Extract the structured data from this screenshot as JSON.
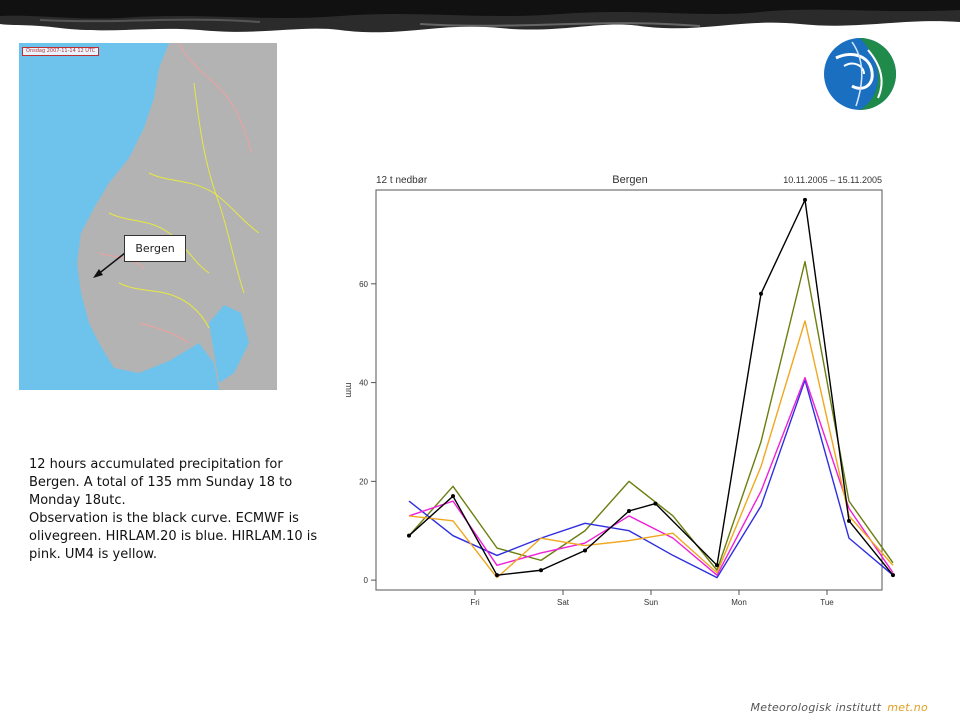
{
  "map": {
    "stamp": "Onsdag 2007-11-14 12 UTC",
    "callout": "Bergen"
  },
  "caption": {
    "lines": [
      "12 hours accumulated precipitation for Bergen. A total of 135 mm Sunday 18 to Monday 18utc.",
      "Observation is the black curve. ECMWF is olivegreen. HIRLAM.20 is blue. HIRLAM.10 is pink. UM4 is yellow."
    ]
  },
  "footer": {
    "institute": "Meteorologisk institutt",
    "brand": "met.no"
  },
  "chart_data": {
    "type": "line",
    "title": "Bergen",
    "subtitle_left": "12 t nedbør",
    "subtitle_right": "10.11.2005 – 15.11.2005",
    "ylabel": "mm",
    "xlabel": "",
    "ylim": [
      -2,
      79
    ],
    "xlim": [
      -0.75,
      10.75
    ],
    "yticks": [
      0,
      20,
      40,
      60
    ],
    "xticks": [
      {
        "label": "Fri",
        "x": 1.5
      },
      {
        "label": "Sat",
        "x": 3.5
      },
      {
        "label": "Sun",
        "x": 5.5
      },
      {
        "label": "Mon",
        "x": 7.5
      },
      {
        "label": "Tue",
        "x": 9.5
      }
    ],
    "grid": false,
    "legend": "none",
    "series": [
      {
        "color": "#000000",
        "marker": true,
        "x": [
          0,
          1,
          2,
          3,
          4,
          5,
          5.6,
          7,
          8,
          9,
          10,
          11
        ],
        "values": [
          9,
          17,
          1,
          2,
          6,
          14,
          15.5,
          3,
          58,
          77,
          12,
          1
        ]
      },
      {
        "color": "#6b7f10",
        "marker": false,
        "x": [
          0,
          1,
          2,
          3,
          4,
          5,
          6,
          7,
          8,
          9,
          10,
          11
        ],
        "values": [
          9,
          19,
          6.5,
          4,
          10,
          20,
          13,
          2,
          28,
          64.5,
          16,
          3.5
        ]
      },
      {
        "color": "#2e2ee0",
        "marker": false,
        "x": [
          0,
          1,
          2,
          3,
          4,
          5,
          6,
          7,
          8,
          9,
          10,
          11
        ],
        "values": [
          16,
          9,
          5,
          8.5,
          11.5,
          10,
          5,
          0.5,
          15,
          40.5,
          8.5,
          1
        ]
      },
      {
        "color": "#f020d8",
        "marker": false,
        "x": [
          0,
          1,
          2,
          3,
          4,
          5,
          6,
          7,
          8,
          9,
          10,
          11
        ],
        "values": [
          13,
          16,
          3,
          5.5,
          7.5,
          13,
          8.5,
          1,
          18,
          41,
          14.5,
          1.5
        ]
      },
      {
        "color": "#f0a820",
        "marker": false,
        "x": [
          0,
          1,
          2,
          3,
          4,
          5,
          6,
          7,
          8,
          9,
          10,
          11
        ],
        "values": [
          13,
          12,
          0.5,
          8.5,
          7,
          8,
          9.5,
          1.5,
          23,
          52.5,
          13,
          3
        ]
      }
    ]
  }
}
